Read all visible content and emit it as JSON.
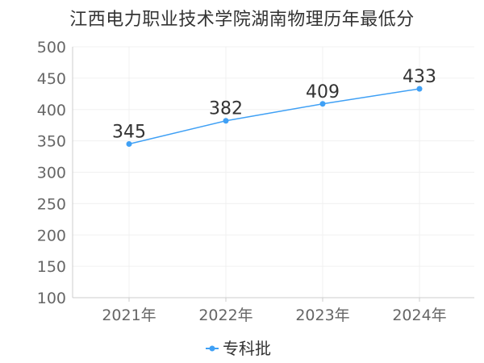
{
  "chart_data": {
    "type": "line",
    "title": "江西电力职业技术学院湖南物理历年最低分",
    "categories": [
      "2021年",
      "2022年",
      "2023年",
      "2024年"
    ],
    "series": [
      {
        "name": "专科批",
        "values": [
          345,
          382,
          409,
          433
        ],
        "color": "#3fa0f5"
      }
    ],
    "ylim": [
      100,
      500
    ],
    "yticks": [
      100,
      150,
      200,
      250,
      300,
      350,
      400,
      450,
      500
    ],
    "grid": true,
    "legend": "bottom-center",
    "data_labels": true
  }
}
